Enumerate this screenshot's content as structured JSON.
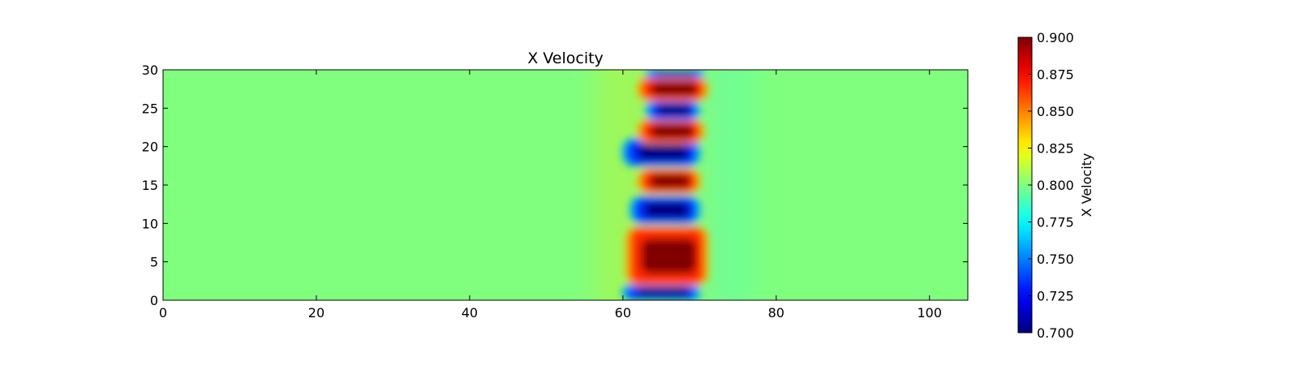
{
  "chart_data": {
    "type": "heatmap",
    "title": "X Velocity",
    "xlabel": "",
    "ylabel": "",
    "xlim": [
      0,
      105
    ],
    "ylim": [
      0,
      30
    ],
    "x_ticks": [
      0,
      20,
      40,
      60,
      80,
      100
    ],
    "y_ticks": [
      0,
      5,
      10,
      15,
      20,
      25,
      30
    ],
    "grid": false,
    "colormap": "jet",
    "colorbar": {
      "label": "X Velocity",
      "range": [
        0.7,
        0.9
      ],
      "ticks": [
        "0.700",
        "0.725",
        "0.750",
        "0.775",
        "0.800",
        "0.825",
        "0.850",
        "0.875",
        "0.900"
      ]
    },
    "background_value": 0.8,
    "features": [
      {
        "kind": "low",
        "x": [
          60.5,
          69.5
        ],
        "y": [
          0,
          2.0
        ],
        "value": 0.7
      },
      {
        "kind": "high",
        "x": [
          61.0,
          70.5
        ],
        "y": [
          2.0,
          9.5
        ],
        "value": 0.9
      },
      {
        "kind": "low",
        "x": [
          61.5,
          69.5
        ],
        "y": [
          10.0,
          13.5
        ],
        "value": 0.7
      },
      {
        "kind": "high",
        "x": [
          62.5,
          69.5
        ],
        "y": [
          14.0,
          17.0
        ],
        "value": 0.9
      },
      {
        "kind": "low",
        "x": [
          60.5,
          69.5
        ],
        "y": [
          17.5,
          21.0
        ],
        "value": 0.7
      },
      {
        "kind": "high",
        "x": [
          62.5,
          70.0
        ],
        "y": [
          20.5,
          23.5
        ],
        "value": 0.9
      },
      {
        "kind": "low",
        "x": [
          63.5,
          69.5
        ],
        "y": [
          23.5,
          26.0
        ],
        "value": 0.7
      },
      {
        "kind": "high",
        "x": [
          62.5,
          70.5
        ],
        "y": [
          26.0,
          29.0
        ],
        "value": 0.9
      },
      {
        "kind": "low",
        "x": [
          63.5,
          70.0
        ],
        "y": [
          29.0,
          30.0
        ],
        "value": 0.7
      }
    ],
    "colors": {
      "background": "#7fff7f",
      "high": "#7f0000",
      "low": "#00007f"
    }
  }
}
